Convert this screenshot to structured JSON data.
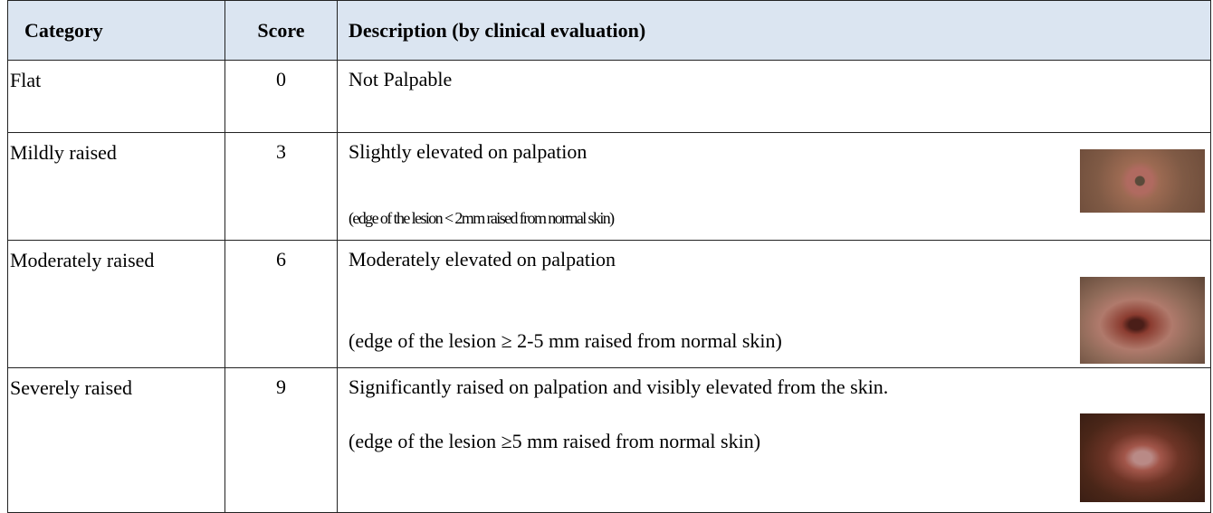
{
  "table": {
    "header": [
      "Category",
      "Score",
      "Description (by clinical evaluation)"
    ],
    "rows": [
      {
        "category": "Flat",
        "score": 0,
        "description": "Not Palpable"
      },
      {
        "category": "Mildly raised",
        "score": 3,
        "description": "Slightly elevated on palpation",
        "note": "(edge of the lesion < 2mm raised from normal skin)"
      },
      {
        "category": "Moderately raised",
        "score": 6,
        "description": "Moderately elevated on palpation",
        "note": "(edge of the lesion ≥ 2-5 mm raised from normal skin)"
      },
      {
        "category": "Severely raised",
        "score": 9,
        "description": "Significantly raised on palpation and visibly elevated from the skin.",
        "note": "(edge of the lesion ≥5 mm raised from normal skin)"
      }
    ]
  }
}
